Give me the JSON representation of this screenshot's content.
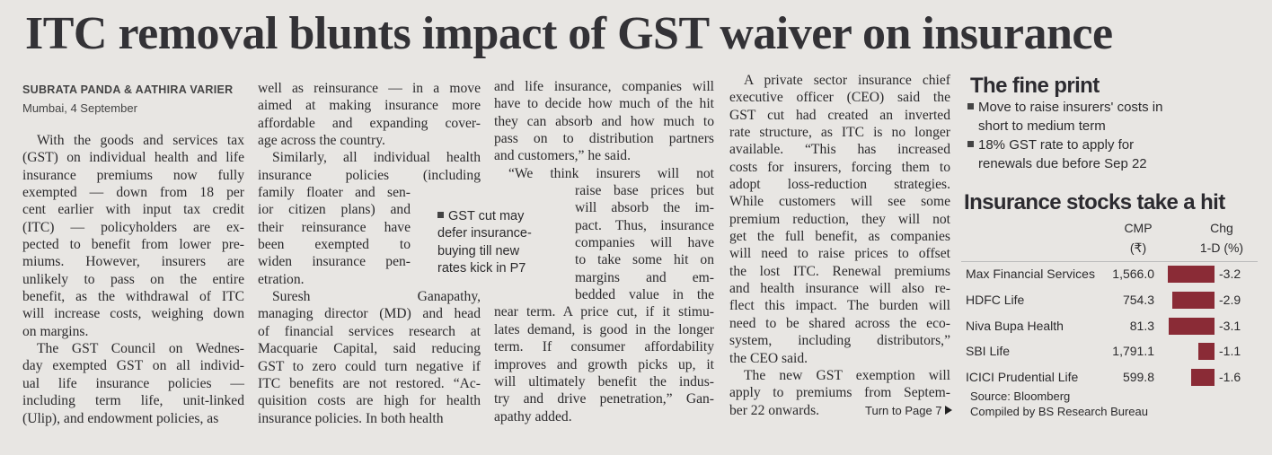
{
  "headline": "ITC removal blunts impact of GST waiver on insurance",
  "byline": "SUBRATA PANDA & AATHIRA VARIER",
  "dateline": "Mumbai, 4 September",
  "columns": [
    [
      [
        "With the goods and services tax",
        "(GST) on individual health and life",
        "insurance premiums now fully",
        "exempted — down from 18 per",
        "cent earlier with input tax credit",
        "(ITC) — policyholders are ex-",
        "pected to benefit from lower pre-",
        "miums. However, insurers are",
        "unlikely to pass on the entire",
        "benefit, as the withdrawal of ITC",
        "will increase costs, weighing down",
        "on margins."
      ],
      [
        "The GST Council on Wednes-",
        "day exempted GST on all individ-",
        "ual life insurance policies —",
        "including term life, unit-linked",
        "(Ulip), and endowment policies, as"
      ]
    ],
    [
      [
        "well as reinsurance — in a move",
        "aimed at making insurance more",
        "affordable and expanding cover-",
        "age across the country."
      ],
      [
        "Similarly, all individual health",
        "insurance policies (including",
        "family floater and sen-",
        "ior citizen plans) and",
        "their reinsurance have",
        "been exempted to",
        "widen insurance pen-",
        "etration."
      ],
      [
        "Suresh Ganapathy,",
        "managing director (MD) and head",
        "of financial services research at",
        "Macquarie Capital, said reducing",
        "GST to zero could turn negative if",
        "ITC benefits are not restored. “Ac-",
        "quisition costs are high for health",
        "insurance policies. In both health"
      ]
    ],
    [
      [
        "and life insurance, companies will",
        "have to decide how much of the hit",
        "they can absorb and how much to",
        "pass on to distribution partners",
        "and customers,” he said."
      ],
      [
        "“We think insurers will not",
        "raise base prices but",
        "will absorb the im-",
        "pact. Thus, insurance",
        "companies will have",
        "to take some hit on",
        "margins and em-",
        "bedded value in the",
        "near term. A price cut, if it stimu-",
        "lates demand, is good in the longer",
        "term. If consumer affordability",
        "improves and growth picks up, it",
        "will ultimately benefit the indus-",
        "try and drive penetration,” Gan-",
        "apathy added."
      ]
    ],
    [
      [
        "A private sector insurance chief",
        "executive officer (CEO) said the",
        "GST cut had created an inverted",
        "rate structure, as ITC is no longer",
        "available. “This has increased",
        "costs for insurers, forcing them to",
        "adopt loss-reduction strategies.",
        "While customers will see some",
        "premium reduction, they will not",
        "get the full benefit, as companies",
        "will need to raise prices to offset",
        "the lost ITC. Renewal premiums",
        "and health insurance will also re-",
        "flect this impact. The burden will",
        "need to be shared across the eco-",
        "system, including distributors,”",
        "the CEO said."
      ],
      [
        "The new GST exemption will",
        "apply to premiums from Septem-",
        "ber 22 onwards."
      ]
    ]
  ],
  "pullquote": [
    "GST cut may",
    "defer insurance-",
    "buying till new",
    "rates kick in P7"
  ],
  "jump": "Turn to Page 7",
  "sidebar": {
    "title": "The fine print",
    "bullets": [
      [
        "Move to raise insurers' costs in",
        "short to medium term"
      ],
      [
        "18% GST rate to apply for",
        "renewals due before Sep 22"
      ]
    ]
  },
  "stocks": {
    "title": "Insurance stocks take a hit",
    "cmp_header": [
      "CMP",
      "(₹)"
    ],
    "chg_header": [
      "Chg",
      "1-D (%)"
    ],
    "rows": [
      {
        "name": "Max Financial Services",
        "cmp": "1,566.0",
        "chg": -3.2
      },
      {
        "name": "HDFC Life",
        "cmp": "754.3",
        "chg": -2.9
      },
      {
        "name": "Niva Bupa Health",
        "cmp": "81.3",
        "chg": -3.1
      },
      {
        "name": "SBI Life",
        "cmp": "1,791.1",
        "chg": -1.1
      },
      {
        "name": "ICICI Prudential Life",
        "cmp": "599.8",
        "chg": -1.6
      }
    ],
    "source": "Source: Bloomberg",
    "compiled": "Compiled by BS Research Bureau"
  }
}
